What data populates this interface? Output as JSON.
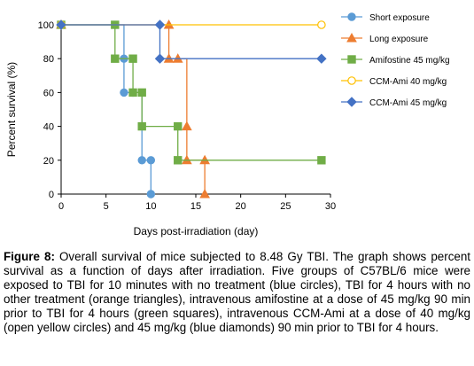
{
  "chart_data": {
    "type": "line",
    "step": true,
    "xlabel": "Days post-irradiation (day)",
    "ylabel": "Percent survival (%)",
    "xlim": [
      0,
      30
    ],
    "ylim": [
      0,
      100
    ],
    "xticks": [
      "0",
      "5",
      "10",
      "15",
      "20",
      "25",
      "30"
    ],
    "yticks": [
      "0",
      "20",
      "40",
      "60",
      "80",
      "100"
    ],
    "grid": false,
    "legend_position": "right",
    "series": [
      {
        "name": "Short exposure",
        "color": "#5b9bd5",
        "marker": "circle",
        "x": [
          0,
          7,
          7,
          8,
          9,
          10,
          10
        ],
        "y": [
          100,
          80,
          60,
          60,
          20,
          20,
          0
        ]
      },
      {
        "name": "Long exposure",
        "color": "#ed7d31",
        "marker": "triangle",
        "x": [
          0,
          12,
          12,
          13,
          14,
          14,
          16,
          16
        ],
        "y": [
          100,
          100,
          80,
          80,
          40,
          20,
          20,
          0
        ]
      },
      {
        "name": "Amifostine 45 mg/kg",
        "color": "#70ad47",
        "marker": "square",
        "x": [
          0,
          6,
          6,
          8,
          8,
          9,
          9,
          13,
          13,
          29
        ],
        "y": [
          100,
          100,
          80,
          80,
          60,
          60,
          40,
          40,
          20,
          20
        ]
      },
      {
        "name": "CCM-Ami 40 mg/kg",
        "color": "#ffc000",
        "marker": "open-circle",
        "x": [
          0,
          29
        ],
        "y": [
          100,
          100
        ]
      },
      {
        "name": "CCM-Ami 45 mg/kg",
        "color": "#4472c4",
        "marker": "diamond",
        "x": [
          0,
          11,
          11,
          29
        ],
        "y": [
          100,
          100,
          80,
          80
        ]
      }
    ]
  },
  "caption": {
    "label": "Figure 8:",
    "text": " Overall survival of mice subjected to 8.48 Gy TBI. The graph shows percent survival as a function of days after irradiation. Five groups of C57BL/6 mice were exposed to TBI for 10 minutes with no treatment (blue circles), TBI for 4 hours with no other treatment (orange triangles), intravenous amifostine at a dose of 45 mg/kg 90 min prior to TBI for 4 hours (green squares), intravenous CCM-Ami at a dose of 40 mg/kg (open yellow circles) and 45 mg/kg (blue diamonds) 90 min prior to TBI for 4 hours."
  }
}
